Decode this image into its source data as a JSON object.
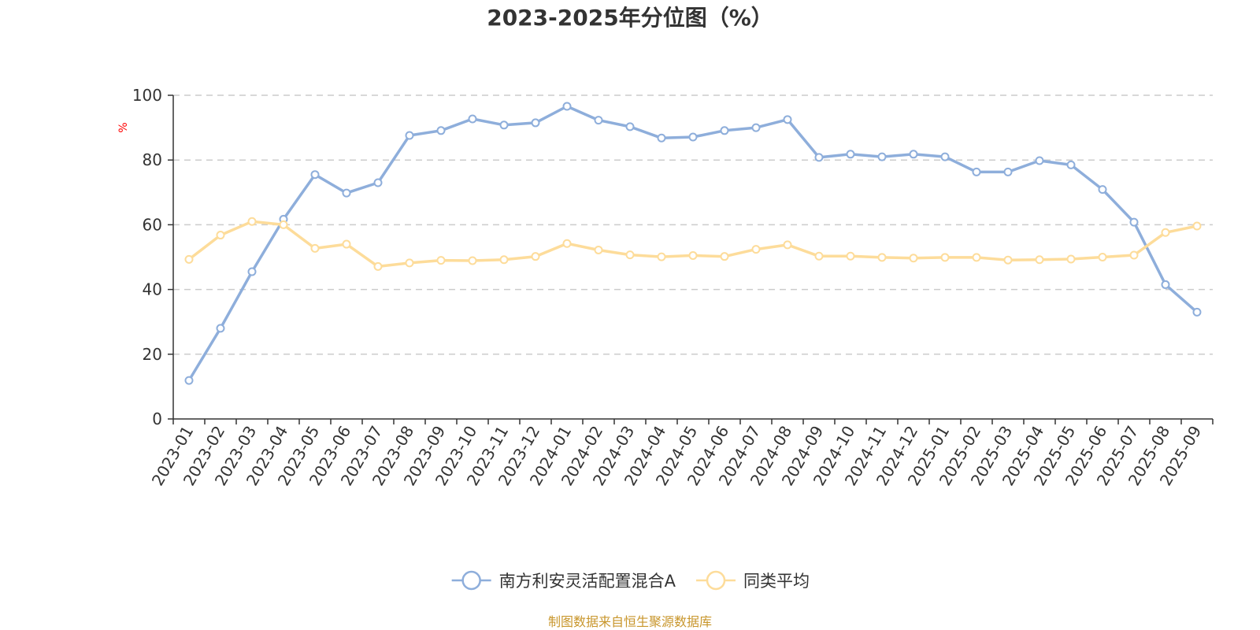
{
  "chart_data": {
    "type": "line",
    "title": "2023-2025年分位图（%）",
    "ylabel": "%",
    "ylim": [
      0,
      100
    ],
    "yticks": [
      0,
      20,
      40,
      60,
      80,
      100
    ],
    "grid": "horizontal-dashed",
    "legend_position": "bottom-center",
    "categories": [
      "2023-01",
      "2023-02",
      "2023-03",
      "2023-04",
      "2023-05",
      "2023-06",
      "2023-07",
      "2023-08",
      "2023-09",
      "2023-10",
      "2023-11",
      "2023-12",
      "2024-01",
      "2024-02",
      "2024-03",
      "2024-04",
      "2024-05",
      "2024-06",
      "2024-07",
      "2024-08",
      "2024-09",
      "2024-10",
      "2024-11",
      "2024-12",
      "2025-01",
      "2025-02",
      "2025-03",
      "2025-04",
      "2025-05",
      "2025-06",
      "2025-07",
      "2025-08",
      "2025-09"
    ],
    "series": [
      {
        "name": "南方利安灵活配置混合A",
        "color": "#8eaedb",
        "values": [
          11.9,
          28.0,
          45.5,
          61.7,
          75.5,
          69.8,
          73.0,
          87.6,
          89.1,
          92.7,
          90.8,
          91.5,
          96.6,
          92.3,
          90.3,
          86.8,
          87.1,
          89.1,
          90.0,
          92.5,
          80.8,
          81.8,
          81.0,
          81.8,
          81.0,
          76.3,
          76.3,
          79.8,
          78.5,
          70.9,
          60.8,
          41.5,
          33.0
        ]
      },
      {
        "name": "同类平均",
        "color": "#fddc9a",
        "values": [
          49.3,
          56.8,
          61.0,
          60.0,
          52.7,
          54.0,
          47.1,
          48.2,
          49.0,
          48.9,
          49.2,
          50.2,
          54.2,
          52.2,
          50.7,
          50.1,
          50.5,
          50.2,
          52.4,
          53.8,
          50.3,
          50.3,
          49.9,
          49.7,
          49.9,
          49.9,
          49.1,
          49.2,
          49.4,
          50.0,
          50.6,
          57.6,
          59.6
        ]
      }
    ]
  },
  "source_text": "制图数据来自恒生聚源数据库",
  "colors": {
    "axis": "#333333",
    "grid": "#cccccc",
    "unit_label": "#ff0000",
    "source_text": "#c8962c"
  }
}
